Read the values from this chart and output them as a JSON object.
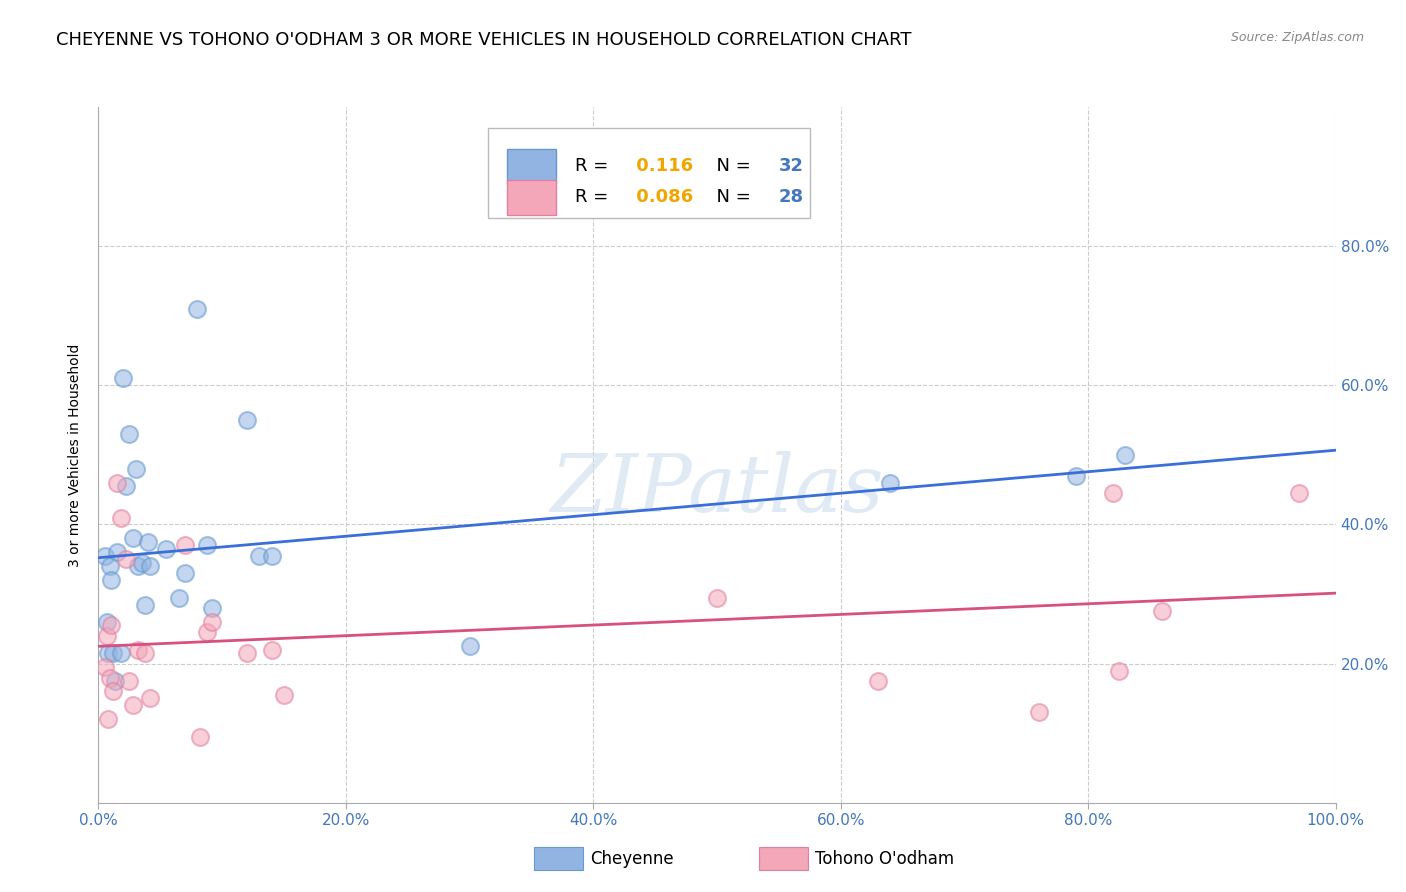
{
  "title": "CHEYENNE VS TOHONO O'ODHAM 3 OR MORE VEHICLES IN HOUSEHOLD CORRELATION CHART",
  "source": "Source: ZipAtlas.com",
  "ylabel": "3 or more Vehicles in Household",
  "watermark": "ZIPatlas",
  "xlim": [
    0,
    1.0
  ],
  "ylim": [
    0,
    1.0
  ],
  "xticks": [
    0.0,
    0.2,
    0.4,
    0.6,
    0.8,
    1.0
  ],
  "yticks_right": [
    0.2,
    0.4,
    0.6,
    0.8
  ],
  "xticklabels": [
    "0.0%",
    "20.0%",
    "40.0%",
    "60.0%",
    "80.0%",
    "100.0%"
  ],
  "yticklabels_right": [
    "20.0%",
    "40.0%",
    "60.0%",
    "80.0%"
  ],
  "legend_blue_r": "0.116",
  "legend_blue_n": "32",
  "legend_pink_r": "0.086",
  "legend_pink_n": "28",
  "cheyenne_color": "#92b4e3",
  "tohono_color": "#f4a7b9",
  "cheyenne_edge_color": "#6699cc",
  "tohono_edge_color": "#e080a0",
  "cheyenne_line_color": "#3a6fd8",
  "tohono_line_color": "#d85080",
  "background_color": "#ffffff",
  "grid_color": "#cccccc",
  "tick_color": "#4477bb",
  "cheyenne_x": [
    0.005,
    0.007,
    0.008,
    0.009,
    0.01,
    0.012,
    0.013,
    0.015,
    0.018,
    0.02,
    0.022,
    0.025,
    0.028,
    0.03,
    0.032,
    0.035,
    0.038,
    0.04,
    0.042,
    0.055,
    0.065,
    0.07,
    0.08,
    0.088,
    0.092,
    0.12,
    0.13,
    0.14,
    0.3,
    0.64,
    0.79,
    0.83
  ],
  "cheyenne_y": [
    0.355,
    0.26,
    0.215,
    0.34,
    0.32,
    0.215,
    0.175,
    0.36,
    0.215,
    0.61,
    0.455,
    0.53,
    0.38,
    0.48,
    0.34,
    0.345,
    0.285,
    0.375,
    0.34,
    0.365,
    0.295,
    0.33,
    0.71,
    0.37,
    0.28,
    0.55,
    0.355,
    0.355,
    0.225,
    0.46,
    0.47,
    0.5
  ],
  "tohono_x": [
    0.005,
    0.007,
    0.008,
    0.009,
    0.01,
    0.012,
    0.015,
    0.018,
    0.022,
    0.025,
    0.028,
    0.032,
    0.038,
    0.042,
    0.07,
    0.082,
    0.088,
    0.092,
    0.12,
    0.14,
    0.15,
    0.5,
    0.63,
    0.76,
    0.82,
    0.825,
    0.86,
    0.97
  ],
  "tohono_y": [
    0.195,
    0.24,
    0.12,
    0.18,
    0.255,
    0.16,
    0.46,
    0.41,
    0.35,
    0.175,
    0.14,
    0.22,
    0.215,
    0.15,
    0.37,
    0.095,
    0.245,
    0.26,
    0.215,
    0.22,
    0.155,
    0.295,
    0.175,
    0.13,
    0.445,
    0.19,
    0.275,
    0.445
  ],
  "title_fontsize": 13,
  "axis_label_fontsize": 10,
  "tick_fontsize": 11,
  "legend_fontsize": 13,
  "marker_size": 150,
  "marker_alpha": 0.55,
  "marker_linewidth": 1.5
}
